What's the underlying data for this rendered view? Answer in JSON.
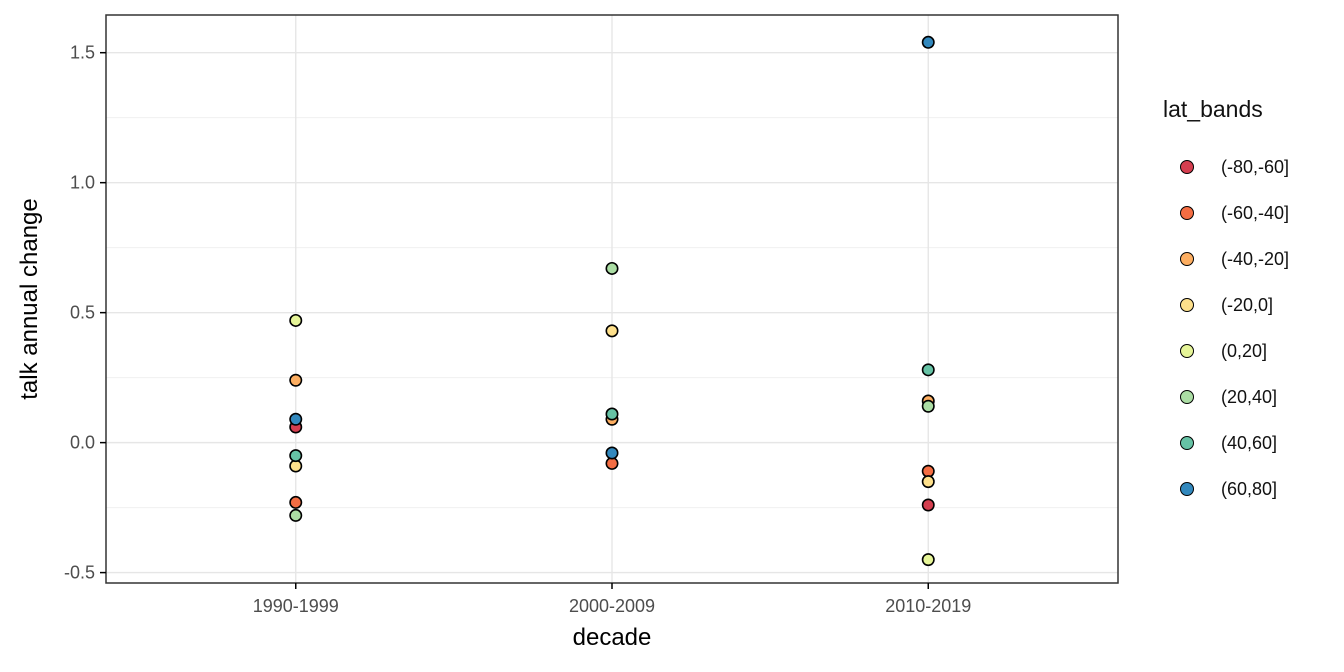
{
  "chart_data": {
    "type": "scatter",
    "title": "",
    "xlabel": "decade",
    "ylabel": "talk annual change",
    "categories": [
      "1990-1999",
      "2000-2009",
      "2010-2019"
    ],
    "y_ticks": [
      -0.5,
      0.0,
      0.5,
      1.0,
      1.5
    ],
    "y_tick_labels": [
      "-0.5",
      "0.0",
      "0.5",
      "1.0",
      "1.5"
    ],
    "ylim": [
      -0.54,
      1.645
    ],
    "grid": true,
    "legend_position": "right",
    "legend_title": "lat_bands",
    "style": {
      "panel_border_color": "#333333",
      "major_grid_color": "#e6e6e6",
      "minor_grid_color": "#f0f0f0",
      "tick_color": "#000000",
      "tick_label_color": "#4d4d4d",
      "point_stroke_color": "#000000"
    },
    "series": [
      {
        "name": "(-80,-60]",
        "color": "#d53e4f",
        "points": [
          {
            "decade": "1990-1999",
            "value": 0.06
          },
          {
            "decade": "2010-2019",
            "value": -0.24
          }
        ]
      },
      {
        "name": "(-60,-40]",
        "color": "#f46d43",
        "points": [
          {
            "decade": "1990-1999",
            "value": -0.23
          },
          {
            "decade": "2000-2009",
            "value": -0.08
          },
          {
            "decade": "2010-2019",
            "value": -0.11
          }
        ]
      },
      {
        "name": "(-40,-20]",
        "color": "#fdae61",
        "points": [
          {
            "decade": "1990-1999",
            "value": 0.24
          },
          {
            "decade": "2000-2009",
            "value": 0.09
          },
          {
            "decade": "2010-2019",
            "value": 0.16
          }
        ]
      },
      {
        "name": "(-20,0]",
        "color": "#fee08b",
        "points": [
          {
            "decade": "1990-1999",
            "value": -0.09
          },
          {
            "decade": "2000-2009",
            "value": 0.43
          },
          {
            "decade": "2010-2019",
            "value": -0.15
          }
        ]
      },
      {
        "name": "(0,20]",
        "color": "#e6f598",
        "points": [
          {
            "decade": "1990-1999",
            "value": 0.47
          },
          {
            "decade": "2010-2019",
            "value": -0.45
          }
        ]
      },
      {
        "name": "(20,40]",
        "color": "#abdda4",
        "points": [
          {
            "decade": "1990-1999",
            "value": -0.28
          },
          {
            "decade": "2000-2009",
            "value": 0.67
          },
          {
            "decade": "2010-2019",
            "value": 0.14
          }
        ]
      },
      {
        "name": "(40,60]",
        "color": "#66c2a5",
        "points": [
          {
            "decade": "1990-1999",
            "value": -0.05
          },
          {
            "decade": "2000-2009",
            "value": 0.11
          },
          {
            "decade": "2010-2019",
            "value": 0.28
          }
        ]
      },
      {
        "name": "(60,80]",
        "color": "#3288bd",
        "points": [
          {
            "decade": "1990-1999",
            "value": 0.09
          },
          {
            "decade": "2000-2009",
            "value": -0.04
          },
          {
            "decade": "2010-2019",
            "value": 1.54
          }
        ]
      }
    ]
  }
}
